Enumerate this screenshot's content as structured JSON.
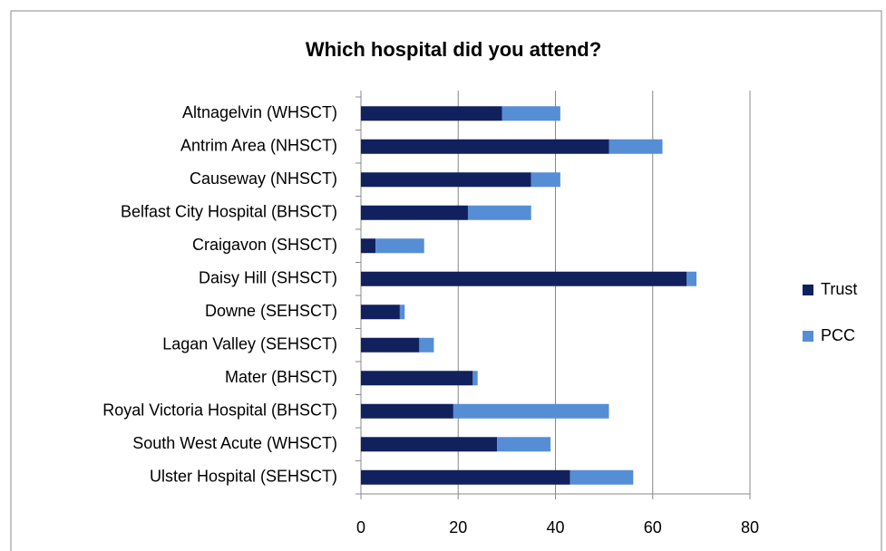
{
  "chart_data": {
    "type": "stacked-bar",
    "orientation": "horizontal",
    "title": "Which hospital did you attend?",
    "categories": [
      "Altnagelvin (WHSCT)",
      "Antrim Area (NHSCT)",
      "Causeway (NHSCT)",
      "Belfast City Hospital (BHSCT)",
      "Craigavon (SHSCT)",
      "Daisy Hill (SHSCT)",
      "Downe (SEHSCT)",
      "Lagan Valley (SEHSCT)",
      "Mater (BHSCT)",
      "Royal Victoria Hospital (BHSCT)",
      "South West Acute (WHSCT)",
      "Ulster Hospital (SEHSCT)"
    ],
    "series": [
      {
        "name": "Trust",
        "color": "#10215e",
        "values": [
          29,
          51,
          35,
          22,
          3,
          67,
          8,
          12,
          23,
          19,
          28,
          43
        ]
      },
      {
        "name": "PCC",
        "color": "#558ed5",
        "values": [
          12,
          11,
          6,
          13,
          10,
          2,
          1,
          3,
          1,
          32,
          11,
          13
        ]
      }
    ],
    "xlim": [
      0,
      80
    ],
    "xticks": [
      0,
      20,
      40,
      60,
      80
    ],
    "grid": true,
    "legend": "right"
  }
}
